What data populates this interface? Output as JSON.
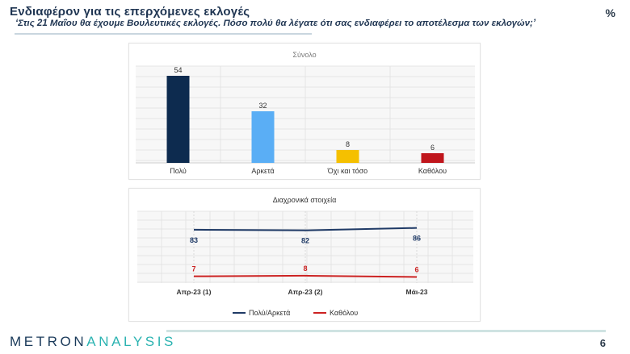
{
  "header": {
    "title": "Ενδιαφέρον για τις επερχόμενες εκλογές",
    "subtitle": "‘Στις 21 Μαΐου θα έχουμε Βουλευτικές εκλογές. Πόσο πολύ θα λέγατε ότι σας ενδιαφέρει το αποτέλεσμα των εκλογών;’",
    "percent_sign": "%"
  },
  "footer": {
    "logo_part1": "METRON",
    "logo_part2": "ANALYSIS",
    "page_number": "6"
  },
  "colors": {
    "navy": "#0d2b4f",
    "light_blue": "#5aaef5",
    "yellow": "#f5c000",
    "red": "#c0161c",
    "line_blue": "#1f3a66",
    "line_red": "#cc2222"
  },
  "chart_data": [
    {
      "type": "bar",
      "title": "Σύνολο",
      "categories": [
        "Πολύ",
        "Αρκετά",
        "Όχι και τόσο",
        "Καθόλου"
      ],
      "values": [
        54,
        32,
        8,
        6
      ],
      "bar_colors": [
        "#0d2b4f",
        "#5aaef5",
        "#f5c000",
        "#c0161c"
      ],
      "ylim": [
        0,
        60
      ],
      "grid": true
    },
    {
      "type": "line",
      "title": "Διαχρονικά στοιχεία",
      "categories": [
        "Απρ-23 (1)",
        "Απρ-23 (2)",
        "Μάι-23"
      ],
      "series": [
        {
          "name": "Πολύ/Αρκετά",
          "values": [
            83,
            82,
            86
          ],
          "color": "#1f3a66"
        },
        {
          "name": "Καθόλου",
          "values": [
            7,
            8,
            6
          ],
          "color": "#cc2222"
        }
      ],
      "ylim": [
        0,
        100
      ],
      "grid": true,
      "legend_position": "bottom"
    }
  ]
}
